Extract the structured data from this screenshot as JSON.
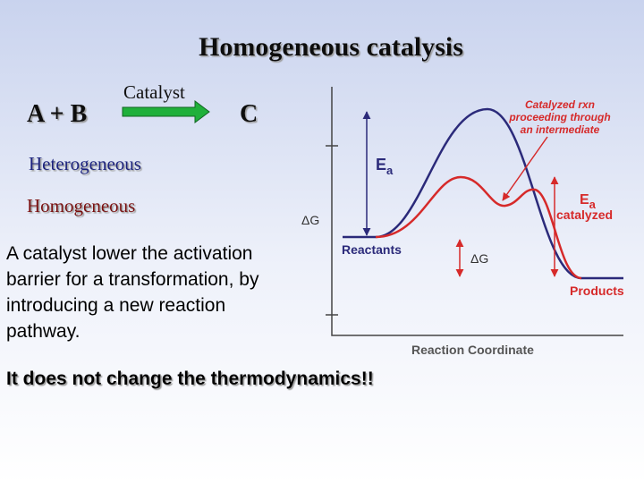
{
  "header": {
    "title": "Homogeneous catalysis"
  },
  "reaction": {
    "reactants": "A + B",
    "catalyst": "Catalyst",
    "product": "C"
  },
  "terms": [
    "Heterogeneous",
    "Homogeneous"
  ],
  "side_label": "ΔG",
  "explanation": [
    "A catalyst lower the activation",
    "barrier for a transformation, by",
    "introducing a new reaction",
    "pathway."
  ],
  "conclusion": "It does not change the thermodynamics!!",
  "diagram": {
    "x_axis": "Reaction Coordinate",
    "reactants": "Reactants",
    "products": "Products",
    "ea": {
      "main": "E",
      "sub": "a"
    },
    "ea_catalyzed": {
      "main": "E",
      "sub": "a",
      "note": "catalyzed"
    },
    "delta_g": "ΔG",
    "annotation": [
      "Catalyzed rxn",
      "proceeding through",
      "an intermediate"
    ]
  }
}
